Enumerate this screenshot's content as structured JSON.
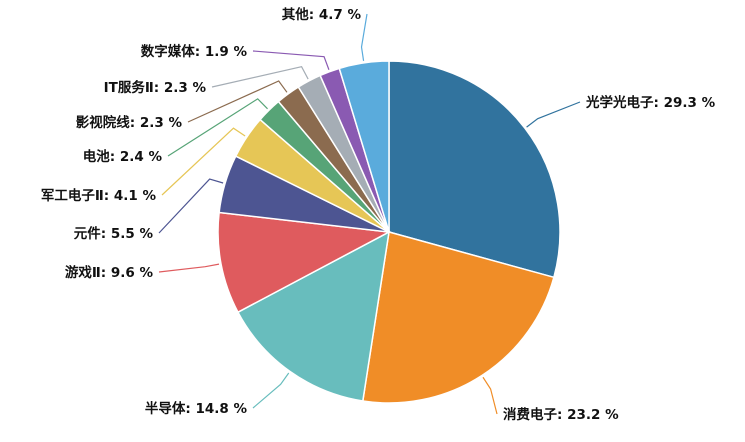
{
  "chart_data": {
    "type": "pie",
    "start_angle_deg": 0,
    "direction": "clockwise",
    "slices": [
      {
        "name": "光学光电子",
        "value": 29.3,
        "label": "光学光电子: 29.3 %",
        "color": "#31739e"
      },
      {
        "name": "消费电子",
        "value": 23.2,
        "label": "消费电子: 23.2 %",
        "color": "#f08d27"
      },
      {
        "name": "半导体",
        "value": 14.8,
        "label": "半导体: 14.8 %",
        "color": "#68bdbd"
      },
      {
        "name": "游戏Ⅱ",
        "value": 9.6,
        "label": "游戏Ⅱ: 9.6 %",
        "color": "#df5b5e"
      },
      {
        "name": "元件",
        "value": 5.5,
        "label": "元件: 5.5 %",
        "color": "#4d5592"
      },
      {
        "name": "军工电子Ⅱ",
        "value": 4.1,
        "label": "军工电子Ⅱ: 4.1 %",
        "color": "#e6c656"
      },
      {
        "name": "电池",
        "value": 2.4,
        "label": "电池: 2.4 %",
        "color": "#57a477"
      },
      {
        "name": "影视院线",
        "value": 2.3,
        "label": "影视院线: 2.3 %",
        "color": "#8b6b4f"
      },
      {
        "name": "IT服务Ⅱ",
        "value": 2.3,
        "label": "IT服务Ⅱ: 2.3 %",
        "color": "#a5adb5"
      },
      {
        "name": "数字媒体",
        "value": 1.9,
        "label": "数字媒体: 1.9 %",
        "color": "#8a5ab2"
      },
      {
        "name": "其他",
        "value": 4.7,
        "label": "其他: 4.7 %",
        "color": "#5aabdc"
      }
    ]
  }
}
